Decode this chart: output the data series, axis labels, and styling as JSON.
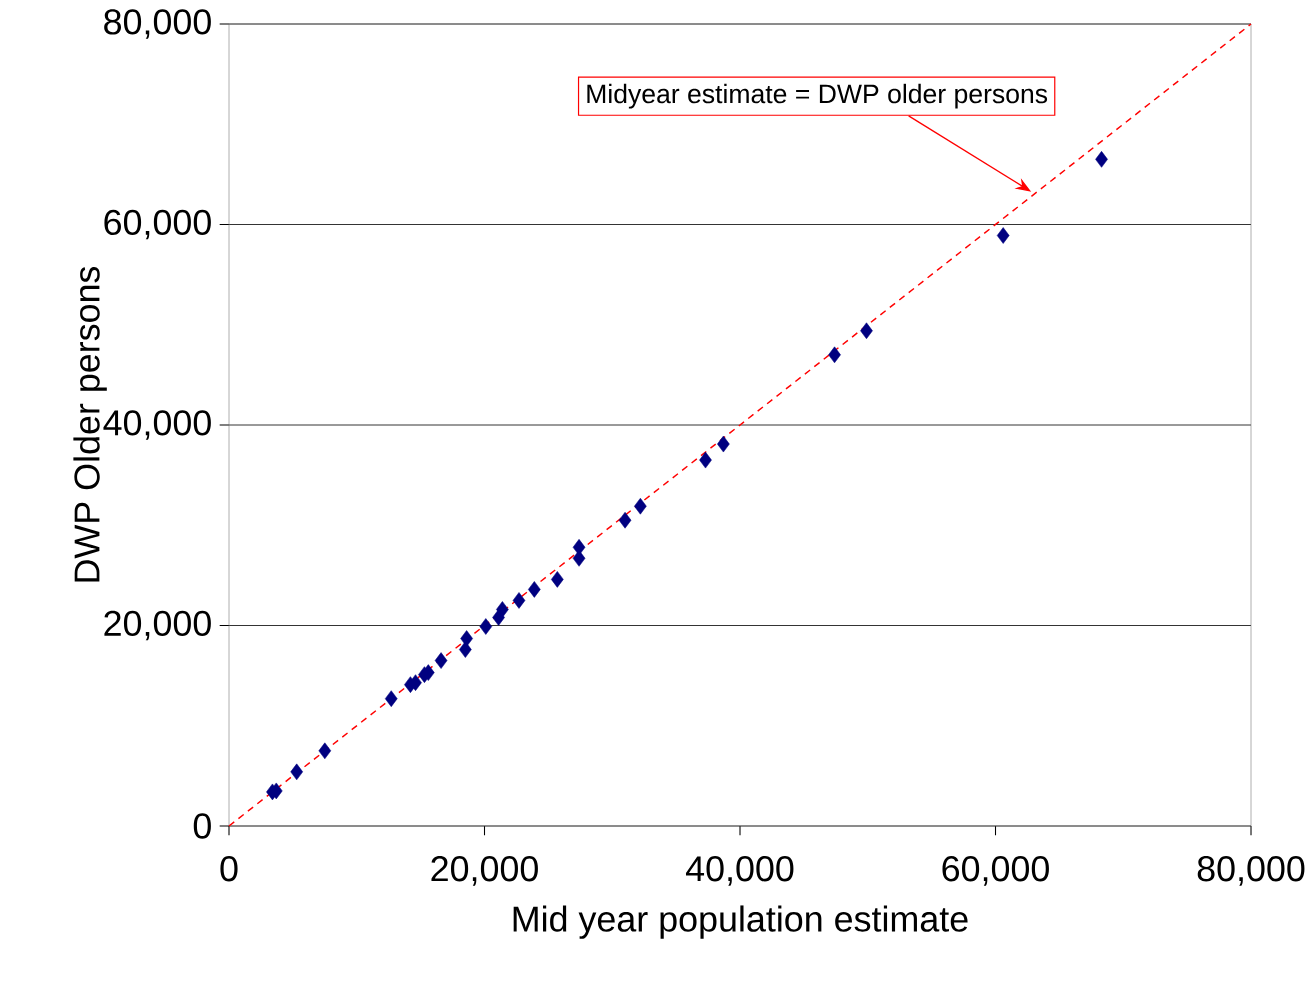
{
  "chart_data": {
    "type": "scatter",
    "xlabel": "Mid year population estimate",
    "ylabel": "DWP Older persons",
    "xlim": [
      0,
      80000
    ],
    "ylim": [
      0,
      80000
    ],
    "xticks": [
      0,
      {
        "value": 20000,
        "label": "20,000"
      },
      {
        "value": 40000,
        "label": "40,000"
      },
      {
        "value": 60000,
        "label": "60,000"
      },
      {
        "value": 80000,
        "label": "80,000"
      }
    ],
    "yticks": [
      0,
      {
        "value": 20000,
        "label": "20,000"
      },
      {
        "value": 40000,
        "label": "40,000"
      },
      {
        "value": 60000,
        "label": "60,000"
      },
      {
        "value": 80000,
        "label": "80,000"
      }
    ],
    "grid": "y",
    "marker": "diamond",
    "annotations": [
      "Midyear estimate = DWP older persons"
    ],
    "series": [
      {
        "color": "#000080",
        "x": [
          3400,
          3700,
          5300,
          7500,
          12700,
          14200,
          14600,
          15300,
          15600,
          16600,
          18500,
          18600,
          20100,
          21100,
          21400,
          22700,
          23900,
          25700,
          27400,
          27400,
          31000,
          32200,
          37300,
          38700,
          47400,
          49900,
          60600,
          68300
        ],
        "values": [
          3400,
          3500,
          5400,
          7500,
          12700,
          14100,
          14300,
          15100,
          15300,
          16500,
          17600,
          18700,
          19900,
          20800,
          21600,
          22500,
          23600,
          24600,
          26700,
          27800,
          30500,
          31900,
          36500,
          38100,
          47000,
          49400,
          58900,
          66500
        ]
      },
      {
        "type": "line",
        "color": "#ff0000",
        "line_style": "dashed",
        "marker": "none",
        "x": [
          0,
          80000
        ],
        "values": [
          0,
          80000
        ]
      }
    ]
  }
}
